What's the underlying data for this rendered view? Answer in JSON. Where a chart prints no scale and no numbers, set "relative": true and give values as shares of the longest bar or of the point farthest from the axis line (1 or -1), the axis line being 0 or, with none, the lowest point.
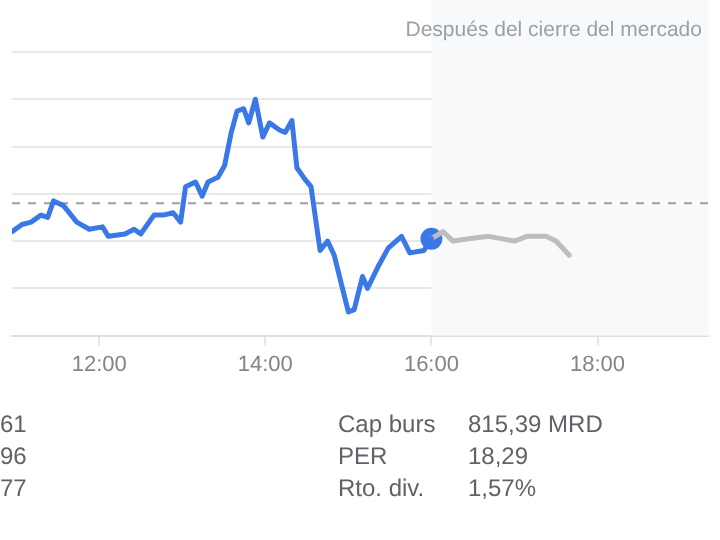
{
  "chart_data": {
    "type": "line",
    "relative": true,
    "xlim": [
      10.95,
      19.33
    ],
    "xticks": [
      {
        "value": 12,
        "label": "12:00"
      },
      {
        "value": 14,
        "label": "14:00"
      },
      {
        "value": 16,
        "label": "16:00"
      },
      {
        "value": 18,
        "label": "18:00"
      }
    ],
    "grid": "y",
    "marker": "none",
    "line_style": "solid",
    "series": [
      {
        "color": "#3b78e7",
        "x": [
          10.95,
          11.07,
          11.18,
          11.3,
          11.38,
          11.45,
          11.57,
          11.73,
          11.88,
          12.04,
          12.11,
          12.31,
          12.42,
          12.5,
          12.66,
          12.77,
          12.89,
          12.98,
          13.04,
          13.16,
          13.24,
          13.31,
          13.43,
          13.51,
          13.59,
          13.66,
          13.74,
          13.8,
          13.88,
          13.97,
          14.05,
          14.17,
          14.24,
          14.32,
          14.38,
          14.48,
          14.55,
          14.66,
          14.75,
          14.83,
          14.9,
          15.0,
          15.07,
          15.17,
          15.23,
          15.37,
          15.48,
          15.64,
          15.74,
          15.91,
          16.0
        ],
        "values": [
          0.44,
          0.47,
          0.48,
          0.51,
          0.5,
          0.57,
          0.55,
          0.48,
          0.45,
          0.46,
          0.42,
          0.43,
          0.45,
          0.43,
          0.51,
          0.51,
          0.52,
          0.48,
          0.63,
          0.65,
          0.59,
          0.65,
          0.67,
          0.72,
          0.86,
          0.95,
          0.96,
          0.9,
          1.0,
          0.84,
          0.9,
          0.87,
          0.86,
          0.91,
          0.71,
          0.66,
          0.63,
          0.36,
          0.4,
          0.34,
          0.24,
          0.1,
          0.11,
          0.25,
          0.2,
          0.3,
          0.37,
          0.42,
          0.35,
          0.36,
          0.41
        ]
      },
      {
        "color": "#bdbdbd",
        "x": [
          16.0,
          16.14,
          16.26,
          16.45,
          16.69,
          17.0,
          17.15,
          17.38,
          17.5,
          17.66
        ],
        "values": [
          0.41,
          0.44,
          0.4,
          0.41,
          0.42,
          0.4,
          0.42,
          0.42,
          0.4,
          0.34
        ]
      },
      {
        "type": "scatter",
        "marker": "circle",
        "color": "#3b78e7",
        "x": [
          16.0
        ],
        "values": [
          0.41
        ]
      }
    ],
    "ref_lines": [
      {
        "axis": "y",
        "value": 0.56,
        "color": "#9e9e9e",
        "line_style": "dashed"
      }
    ],
    "bands": [
      {
        "axis": "x",
        "from": 16,
        "to": 19.33,
        "label": "Después del cierre del mercado",
        "color": "#f8f9fa"
      }
    ],
    "annotations": [
      "61",
      "96",
      "77",
      "Cap burs",
      "815,39 MRD",
      "PER",
      "18,29",
      "Rto. div.",
      "1,57%"
    ]
  }
}
